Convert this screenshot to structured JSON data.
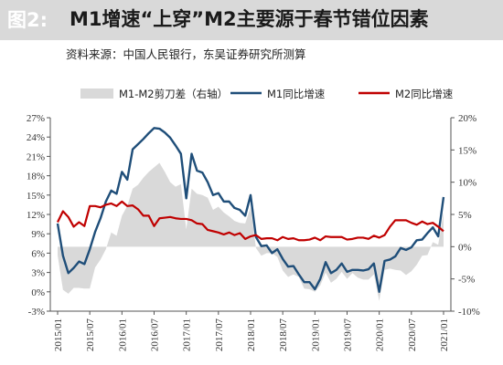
{
  "header": {
    "figure_label": "图2:",
    "title": "M1增速“上穿”M2主要源于春节错位因素",
    "source": "资料来源：中国人民银行，东吴证券研究所测算"
  },
  "colors": {
    "area": "#d9d9d9",
    "m1": "#1f4e79",
    "m2": "#c00000",
    "title_bar": "#d9d9d9"
  },
  "chart_data": {
    "type": "line",
    "legend_position": "top",
    "grid": false,
    "x_tick_labels": [
      "2015/01",
      "2015/07",
      "2016/01",
      "2016/07",
      "2017/01",
      "2017/07",
      "2018/01",
      "2018/07",
      "2019/01",
      "2019/07",
      "2020/01",
      "2020/07",
      "2021/01"
    ],
    "x_range": [
      "2015/01",
      "2021/01"
    ],
    "left_axis": {
      "ylim": [
        -3,
        27
      ],
      "ticks": [
        "27%",
        "24%",
        "21%",
        "18%",
        "15%",
        "12%",
        "9%",
        "6%",
        "3%",
        "0%",
        "-3%"
      ],
      "tick_values": [
        27,
        24,
        21,
        18,
        15,
        12,
        9,
        6,
        3,
        0,
        -3
      ]
    },
    "right_axis": {
      "ylim": [
        -10,
        20
      ],
      "ticks": [
        "20%",
        "15%",
        "10%",
        "5%",
        "0%",
        "-5%",
        "-10%"
      ],
      "tick_values": [
        20,
        15,
        10,
        5,
        0,
        -5,
        -10
      ]
    },
    "series": [
      {
        "name": "M1-M2剪刀差（右轴）",
        "kind": "area",
        "axis": "right",
        "dates": [
          "2015/01",
          "2015/02",
          "2015/03",
          "2015/04",
          "2015/05",
          "2015/06",
          "2015/07",
          "2015/08",
          "2015/09",
          "2015/10",
          "2015/11",
          "2015/12",
          "2016/01",
          "2016/02",
          "2016/03",
          "2016/04",
          "2016/05",
          "2016/06",
          "2016/07",
          "2016/08",
          "2016/09",
          "2016/10",
          "2016/11",
          "2016/12",
          "2017/01",
          "2017/02",
          "2017/03",
          "2017/04",
          "2017/05",
          "2017/06",
          "2017/07",
          "2017/08",
          "2017/09",
          "2017/10",
          "2017/11",
          "2017/12",
          "2018/01",
          "2018/02",
          "2018/03",
          "2018/04",
          "2018/05",
          "2018/06",
          "2018/07",
          "2018/08",
          "2018/09",
          "2018/10",
          "2018/11",
          "2018/12",
          "2019/01",
          "2019/02",
          "2019/03",
          "2019/04",
          "2019/05",
          "2019/06",
          "2019/07",
          "2019/08",
          "2019/09",
          "2019/10",
          "2019/11",
          "2019/12",
          "2020/01",
          "2020/02",
          "2020/03",
          "2020/04",
          "2020/05",
          "2020/06",
          "2020/07",
          "2020/08",
          "2020/09",
          "2020/10",
          "2020/11",
          "2020/12",
          "2021/01"
        ],
        "values": [
          -1.3,
          -6.7,
          -7.3,
          -6.4,
          -6.4,
          -6.5,
          -6.5,
          -3.2,
          -2.0,
          -0.4,
          2.2,
          1.7,
          4.8,
          6.3,
          9.0,
          9.6,
          10.7,
          11.6,
          12.3,
          13.0,
          11.6,
          10.0,
          9.3,
          9.7,
          2.7,
          9.0,
          8.2,
          8.0,
          7.6,
          5.7,
          6.2,
          5.3,
          4.7,
          4.0,
          3.7,
          3.6,
          6.1,
          -0.2,
          -1.4,
          -1.0,
          -1.0,
          -1.6,
          -3.7,
          -4.7,
          -4.3,
          -4.7,
          -6.5,
          -6.6,
          -7.0,
          -6.0,
          -4.0,
          -5.6,
          -5.0,
          -3.9,
          -5.0,
          -4.1,
          -4.8,
          -5.1,
          -5.1,
          -4.3,
          -8.4,
          -3.6,
          -3.4,
          -3.6,
          -3.7,
          -4.4,
          -3.8,
          -2.8,
          -1.4,
          -1.3,
          0.7,
          0.3,
          5.3
        ]
      },
      {
        "name": "M1同比增速",
        "kind": "line",
        "axis": "left",
        "dates": [
          "2015/01",
          "2015/02",
          "2015/03",
          "2015/04",
          "2015/05",
          "2015/06",
          "2015/07",
          "2015/08",
          "2015/09",
          "2015/10",
          "2015/11",
          "2015/12",
          "2016/01",
          "2016/02",
          "2016/03",
          "2016/04",
          "2016/05",
          "2016/06",
          "2016/07",
          "2016/08",
          "2016/09",
          "2016/10",
          "2016/11",
          "2016/12",
          "2017/01",
          "2017/02",
          "2017/03",
          "2017/04",
          "2017/05",
          "2017/06",
          "2017/07",
          "2017/08",
          "2017/09",
          "2017/10",
          "2017/11",
          "2017/12",
          "2018/01",
          "2018/02",
          "2018/03",
          "2018/04",
          "2018/05",
          "2018/06",
          "2018/07",
          "2018/08",
          "2018/09",
          "2018/10",
          "2018/11",
          "2018/12",
          "2019/01",
          "2019/02",
          "2019/03",
          "2019/04",
          "2019/05",
          "2019/06",
          "2019/07",
          "2019/08",
          "2019/09",
          "2019/10",
          "2019/11",
          "2019/12",
          "2020/01",
          "2020/02",
          "2020/03",
          "2020/04",
          "2020/05",
          "2020/06",
          "2020/07",
          "2020/08",
          "2020/09",
          "2020/10",
          "2020/11",
          "2020/12",
          "2021/01"
        ],
        "values": [
          10.6,
          5.6,
          2.9,
          3.7,
          4.7,
          4.3,
          6.6,
          9.3,
          11.4,
          14.0,
          15.7,
          15.2,
          18.6,
          17.4,
          22.1,
          22.9,
          23.7,
          24.6,
          25.4,
          25.3,
          24.7,
          23.9,
          22.7,
          21.4,
          14.5,
          21.4,
          18.8,
          18.5,
          17.0,
          15.0,
          15.3,
          14.0,
          14.0,
          13.0,
          12.7,
          11.8,
          15.0,
          8.5,
          7.1,
          7.2,
          6.0,
          6.6,
          5.1,
          3.9,
          4.0,
          2.7,
          1.5,
          1.5,
          0.4,
          2.0,
          4.6,
          2.9,
          3.4,
          4.4,
          3.1,
          3.4,
          3.4,
          3.3,
          3.5,
          4.4,
          0.0,
          4.8,
          5.0,
          5.5,
          6.8,
          6.5,
          6.9,
          8.0,
          8.1,
          9.1,
          10.0,
          8.6,
          14.7
        ]
      },
      {
        "name": "M2同比增速",
        "kind": "line",
        "axis": "left",
        "dates": [
          "2015/01",
          "2015/02",
          "2015/03",
          "2015/04",
          "2015/05",
          "2015/06",
          "2015/07",
          "2015/08",
          "2015/09",
          "2015/10",
          "2015/11",
          "2015/12",
          "2016/01",
          "2016/02",
          "2016/03",
          "2016/04",
          "2016/05",
          "2016/06",
          "2016/07",
          "2016/08",
          "2016/09",
          "2016/10",
          "2016/11",
          "2016/12",
          "2017/01",
          "2017/02",
          "2017/03",
          "2017/04",
          "2017/05",
          "2017/06",
          "2017/07",
          "2017/08",
          "2017/09",
          "2017/10",
          "2017/11",
          "2017/12",
          "2018/01",
          "2018/02",
          "2018/03",
          "2018/04",
          "2018/05",
          "2018/06",
          "2018/07",
          "2018/08",
          "2018/09",
          "2018/10",
          "2018/11",
          "2018/12",
          "2019/01",
          "2019/02",
          "2019/03",
          "2019/04",
          "2019/05",
          "2019/06",
          "2019/07",
          "2019/08",
          "2019/09",
          "2019/10",
          "2019/11",
          "2019/12",
          "2020/01",
          "2020/02",
          "2020/03",
          "2020/04",
          "2020/05",
          "2020/06",
          "2020/07",
          "2020/08",
          "2020/09",
          "2020/10",
          "2020/11",
          "2020/12",
          "2021/01"
        ],
        "values": [
          10.8,
          12.5,
          11.6,
          10.1,
          10.8,
          10.2,
          13.3,
          13.3,
          13.1,
          13.5,
          13.7,
          13.3,
          14.0,
          13.3,
          13.4,
          12.8,
          11.8,
          11.8,
          10.2,
          11.4,
          11.5,
          11.6,
          11.4,
          11.3,
          11.3,
          11.1,
          10.6,
          10.5,
          9.6,
          9.4,
          9.2,
          8.9,
          9.2,
          8.8,
          9.1,
          8.2,
          8.6,
          8.8,
          8.2,
          8.3,
          8.3,
          8.0,
          8.5,
          8.2,
          8.3,
          8.0,
          8.0,
          8.1,
          8.4,
          8.0,
          8.6,
          8.5,
          8.5,
          8.5,
          8.1,
          8.2,
          8.4,
          8.4,
          8.2,
          8.7,
          8.4,
          8.8,
          10.1,
          11.1,
          11.1,
          11.1,
          10.7,
          10.4,
          10.9,
          10.5,
          10.7,
          10.1,
          9.4
        ]
      }
    ]
  }
}
